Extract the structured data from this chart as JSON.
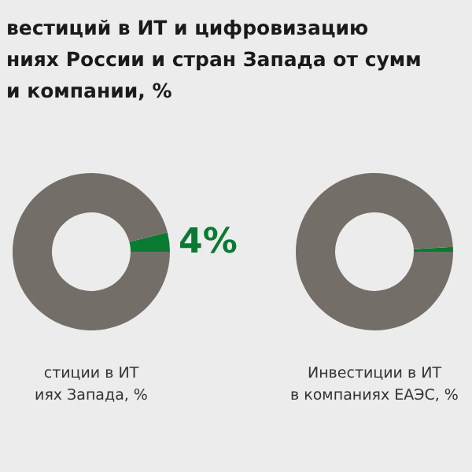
{
  "chart_data": [
    {
      "type": "donut",
      "title": "вестиций в ИТ и цифровизацию\nниях России и стран Запада от сумм\nи компании, %",
      "xlabel": "стиции в ИТ\nиях Запада, %",
      "categories": [
        null,
        null
      ],
      "values": [
        4,
        96
      ],
      "colors": [
        "#0a7a32",
        "#746e69"
      ],
      "value_labels": [
        "4%",
        null
      ]
    },
    {
      "type": "donut",
      "xlabel": "Инвестиции в ИТ\nв компаниях ЕАЭС, %",
      "categories": [
        null,
        null
      ],
      "values": [
        1,
        99
      ],
      "colors": [
        "#0a7a32",
        "#746e69"
      ]
    }
  ]
}
